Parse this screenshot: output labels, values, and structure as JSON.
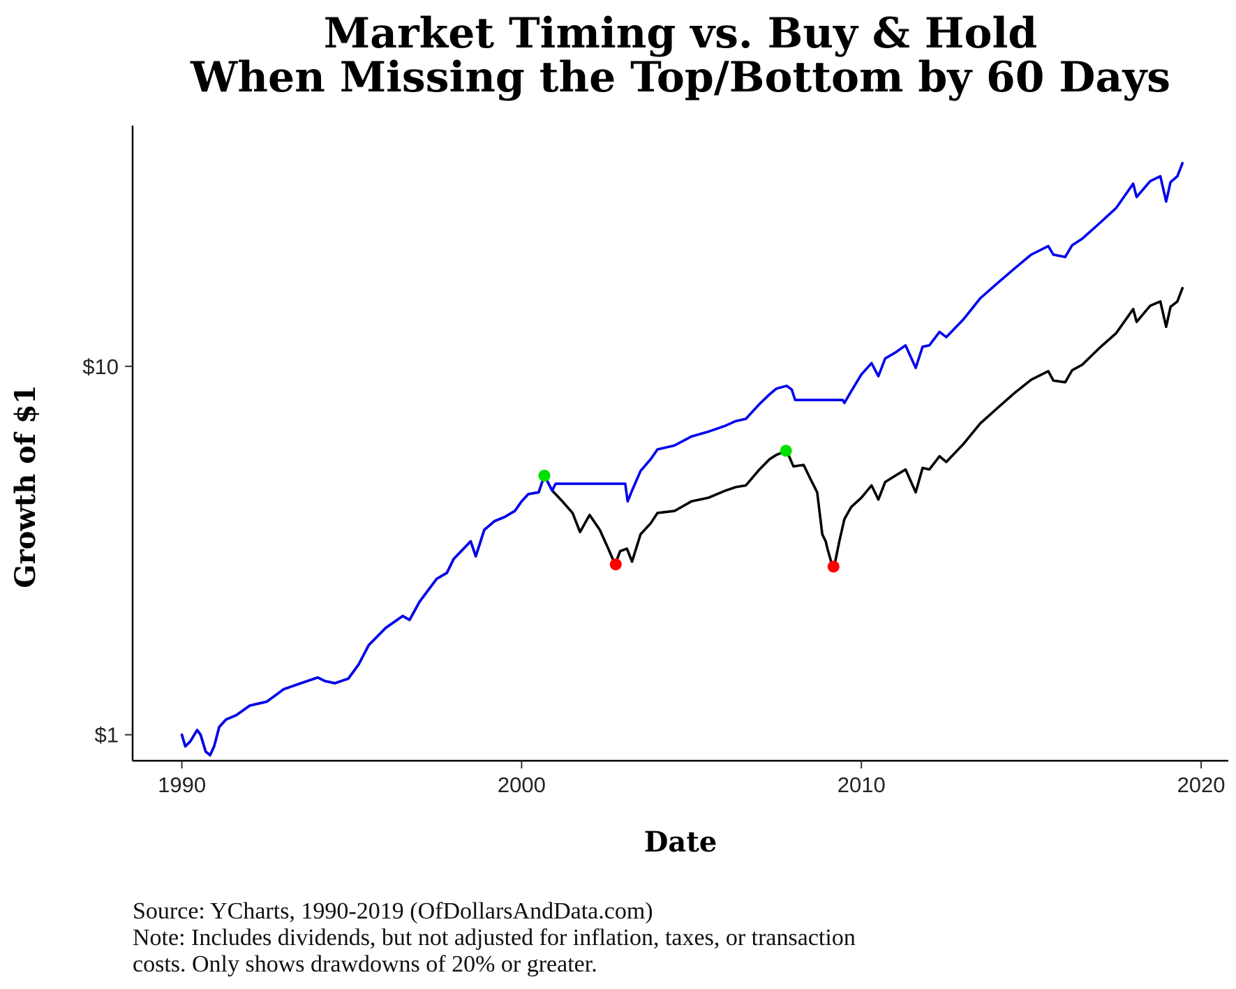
{
  "chart_data": {
    "type": "line",
    "title_lines": [
      "Market Timing vs. Buy & Hold",
      "When Missing the Top/Bottom by 60 Days"
    ],
    "xlabel": "Date",
    "ylabel": "Growth of $1",
    "xlim": [
      1988.55,
      2020.8
    ],
    "ylim": [
      0.85,
      45
    ],
    "y_scale": "log",
    "grid": false,
    "legend": "none",
    "x_ticks": [
      1990,
      2000,
      2010,
      2020
    ],
    "x_tick_labels": [
      "1990",
      "2000",
      "2010",
      "2020"
    ],
    "y_ticks": [
      1,
      10
    ],
    "y_tick_labels": [
      "$1",
      "$10"
    ],
    "caption_lines": [
      "Source:  YCharts, 1990-2019 (OfDollarsAndData.com)",
      "Note: Includes dividends, but not adjusted for inflation, taxes, or transaction",
      "costs. Only shows drawdowns of 20% or greater."
    ],
    "series": [
      {
        "color": "#000000",
        "x": [
          1990.0,
          1990.1,
          1990.25,
          1990.45,
          1990.55,
          1990.7,
          1990.83,
          1990.95,
          1991.1,
          1991.3,
          1991.6,
          1992.0,
          1992.5,
          1993.0,
          1993.5,
          1994.0,
          1994.2,
          1994.5,
          1994.9,
          1995.2,
          1995.5,
          1996.0,
          1996.5,
          1996.7,
          1997.0,
          1997.5,
          1997.8,
          1998.0,
          1998.5,
          1998.65,
          1998.9,
          1999.2,
          1999.5,
          1999.8,
          2000.0,
          2000.2,
          2000.5,
          2000.67,
          2000.9,
          2001.2,
          2001.5,
          2001.72,
          2002.0,
          2002.3,
          2002.55,
          2002.75,
          2002.9,
          2003.1,
          2003.25,
          2003.5,
          2003.8,
          2004.0,
          2004.5,
          2005.0,
          2005.5,
          2006.0,
          2006.3,
          2006.6,
          2007.0,
          2007.3,
          2007.5,
          2007.8,
          2008.0,
          2008.3,
          2008.5,
          2008.7,
          2008.85,
          2008.95,
          2009.0,
          2009.18,
          2009.35,
          2009.5,
          2009.7,
          2010.0,
          2010.3,
          2010.5,
          2010.7,
          2011.0,
          2011.3,
          2011.6,
          2011.8,
          2012.0,
          2012.3,
          2012.5,
          2013.0,
          2013.5,
          2014.0,
          2014.5,
          2015.0,
          2015.5,
          2015.65,
          2016.0,
          2016.2,
          2016.5,
          2017.0,
          2017.5,
          2018.0,
          2018.1,
          2018.5,
          2018.8,
          2018.97,
          2019.1,
          2019.3,
          2019.45
        ],
        "y": [
          1.0,
          0.93,
          0.96,
          1.03,
          1.0,
          0.9,
          0.88,
          0.93,
          1.05,
          1.1,
          1.13,
          1.2,
          1.23,
          1.33,
          1.38,
          1.43,
          1.4,
          1.38,
          1.42,
          1.55,
          1.75,
          1.95,
          2.1,
          2.05,
          2.3,
          2.65,
          2.75,
          3.0,
          3.35,
          3.05,
          3.6,
          3.8,
          3.9,
          4.05,
          4.3,
          4.5,
          4.55,
          5.05,
          4.6,
          4.3,
          4.0,
          3.55,
          3.95,
          3.6,
          3.2,
          2.9,
          3.15,
          3.2,
          2.95,
          3.5,
          3.75,
          4.0,
          4.05,
          4.3,
          4.4,
          4.6,
          4.7,
          4.75,
          5.25,
          5.6,
          5.75,
          5.9,
          5.35,
          5.4,
          4.95,
          4.55,
          3.5,
          3.35,
          3.2,
          2.8,
          3.35,
          3.85,
          4.15,
          4.4,
          4.75,
          4.35,
          4.85,
          5.05,
          5.25,
          4.55,
          5.3,
          5.25,
          5.7,
          5.5,
          6.15,
          7.0,
          7.7,
          8.45,
          9.2,
          9.7,
          9.15,
          9.05,
          9.75,
          10.1,
          11.2,
          12.3,
          14.3,
          13.2,
          14.6,
          15.0,
          12.8,
          14.5,
          15.0,
          16.3
        ]
      },
      {
        "color": "#0000ee",
        "x": [
          1990.0,
          1990.1,
          1990.25,
          1990.45,
          1990.55,
          1990.7,
          1990.83,
          1990.95,
          1991.1,
          1991.3,
          1991.6,
          1992.0,
          1992.5,
          1993.0,
          1993.5,
          1994.0,
          1994.2,
          1994.5,
          1994.9,
          1995.2,
          1995.5,
          1996.0,
          1996.5,
          1996.7,
          1997.0,
          1997.5,
          1997.8,
          1998.0,
          1998.5,
          1998.65,
          1998.9,
          1999.2,
          1999.5,
          1999.8,
          2000.0,
          2000.2,
          2000.5,
          2000.67,
          2000.9,
          2001.0,
          2003.05,
          2003.12,
          2003.25,
          2003.5,
          2003.8,
          2004.0,
          2004.5,
          2005.0,
          2005.5,
          2006.0,
          2006.3,
          2006.6,
          2007.0,
          2007.3,
          2007.5,
          2007.8,
          2007.95,
          2008.05,
          2009.45,
          2009.5,
          2009.7,
          2010.0,
          2010.3,
          2010.5,
          2010.7,
          2011.0,
          2011.3,
          2011.6,
          2011.8,
          2012.0,
          2012.3,
          2012.5,
          2013.0,
          2013.5,
          2014.0,
          2014.5,
          2015.0,
          2015.5,
          2015.65,
          2016.0,
          2016.2,
          2016.5,
          2017.0,
          2017.5,
          2018.0,
          2018.1,
          2018.5,
          2018.8,
          2018.97,
          2019.1,
          2019.3,
          2019.45
        ],
        "y": [
          1.0,
          0.93,
          0.96,
          1.03,
          1.0,
          0.9,
          0.88,
          0.93,
          1.05,
          1.1,
          1.13,
          1.2,
          1.23,
          1.33,
          1.38,
          1.43,
          1.4,
          1.38,
          1.42,
          1.55,
          1.75,
          1.95,
          2.1,
          2.05,
          2.3,
          2.65,
          2.75,
          3.0,
          3.35,
          3.05,
          3.6,
          3.8,
          3.9,
          4.05,
          4.3,
          4.5,
          4.55,
          5.05,
          4.6,
          4.8,
          4.8,
          4.3,
          4.6,
          5.2,
          5.6,
          5.95,
          6.1,
          6.45,
          6.65,
          6.9,
          7.1,
          7.2,
          7.9,
          8.4,
          8.7,
          8.85,
          8.65,
          8.1,
          8.1,
          7.95,
          8.55,
          9.5,
          10.2,
          9.4,
          10.5,
          10.9,
          11.4,
          9.9,
          11.3,
          11.4,
          12.4,
          12.0,
          13.4,
          15.3,
          16.8,
          18.4,
          20.1,
          21.2,
          20.1,
          19.8,
          21.3,
          22.2,
          24.4,
          26.9,
          31.3,
          28.8,
          31.8,
          32.8,
          28.0,
          31.6,
          32.8,
          35.6
        ]
      }
    ],
    "peaks": [
      {
        "x": 2000.67,
        "y": 5.05,
        "color": "#00e000"
      },
      {
        "x": 2007.78,
        "y": 5.9,
        "color": "#00e000"
      }
    ],
    "troughs": [
      {
        "x": 2002.77,
        "y": 2.9,
        "color": "#ff0000"
      },
      {
        "x": 2009.18,
        "y": 2.86,
        "color": "#ff0000"
      }
    ]
  }
}
